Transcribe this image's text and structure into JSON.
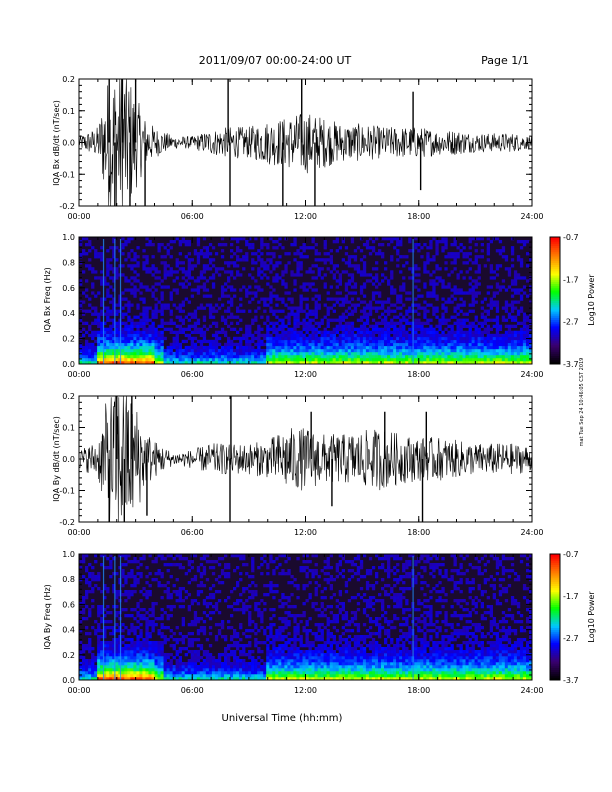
{
  "header": {
    "date_range": "2011/09/07  00:00-24:00 UT",
    "page": "Page 1/1"
  },
  "footer": {
    "side_note": "mat Tue Sep 24 10:46:05 CST 2019"
  },
  "chart_data": [
    {
      "type": "line",
      "ylabel": "IQA Bx dB/dt (nT/sec)",
      "xlabel": "",
      "xlim_hours": [
        0,
        24
      ],
      "ylim": [
        -0.2,
        0.2
      ],
      "x_ticks": [
        "00:00",
        "06:00",
        "12:00",
        "18:00",
        "24:00"
      ],
      "y_ticks": [
        "-0.2",
        "-0.1",
        "0.0",
        "0.1",
        "0.2"
      ],
      "envelope": {
        "hours": [
          0,
          1,
          1.5,
          2,
          2.5,
          3,
          3.5,
          4,
          5,
          6,
          7,
          8,
          9,
          10,
          11,
          12,
          13,
          14,
          15,
          16,
          17,
          18,
          19,
          20,
          21,
          22,
          23,
          24
        ],
        "amplitude": [
          0.02,
          0.05,
          0.2,
          0.25,
          0.25,
          0.15,
          0.08,
          0.05,
          0.02,
          0.02,
          0.04,
          0.05,
          0.05,
          0.07,
          0.08,
          0.1,
          0.08,
          0.06,
          0.06,
          0.05,
          0.05,
          0.05,
          0.04,
          0.04,
          0.03,
          0.03,
          0.03,
          0.02
        ]
      },
      "spikes": [
        {
          "hour": 1.6,
          "value": 0.22
        },
        {
          "hour": 1.9,
          "value": -0.22
        },
        {
          "hour": 2.3,
          "value": 0.22
        },
        {
          "hour": 2.7,
          "value": -0.2
        },
        {
          "hour": 3.5,
          "value": -0.2
        },
        {
          "hour": 3.0,
          "value": 0.2
        },
        {
          "hour": 7.9,
          "value": 0.22
        },
        {
          "hour": 8.0,
          "value": -0.2
        },
        {
          "hour": 10.8,
          "value": -0.2
        },
        {
          "hour": 11.8,
          "value": 0.2
        },
        {
          "hour": 12.5,
          "value": -0.2
        },
        {
          "hour": 17.7,
          "value": 0.16
        },
        {
          "hour": 18.1,
          "value": -0.15
        }
      ]
    },
    {
      "type": "heatmap",
      "ylabel": "IQA Bx Freq (Hz)",
      "xlabel": "",
      "xlim_hours": [
        0,
        24
      ],
      "ylim": [
        0,
        1.0
      ],
      "x_ticks": [
        "00:00",
        "06:00",
        "12:00",
        "18:00",
        "24:00"
      ],
      "y_ticks": [
        "0.0",
        "0.2",
        "0.4",
        "0.6",
        "0.8",
        "1.0"
      ],
      "colorbar": {
        "label": "Log10 Power",
        "ticks": [
          "-0.7",
          "-1.7",
          "-2.7",
          "-3.7"
        ],
        "range": [
          -3.7,
          -0.7
        ]
      },
      "vertical_streak_hours": [
        1.3,
        1.9,
        2.2,
        17.7
      ],
      "activity_band_hours": [
        [
          1.0,
          4.5
        ],
        [
          10.0,
          24.0
        ]
      ]
    },
    {
      "type": "line",
      "ylabel": "IQA By dB/dt (nT/sec)",
      "xlabel": "",
      "xlim_hours": [
        0,
        24
      ],
      "ylim": [
        -0.2,
        0.2
      ],
      "x_ticks": [
        "00:00",
        "06:00",
        "12:00",
        "18:00",
        "24:00"
      ],
      "y_ticks": [
        "-0.2",
        "-0.1",
        "0.0",
        "0.1",
        "0.2"
      ],
      "envelope": {
        "hours": [
          0,
          1,
          1.5,
          2,
          2.5,
          3,
          3.5,
          4,
          5,
          6,
          7,
          8,
          9,
          10,
          11,
          12,
          13,
          14,
          15,
          16,
          17,
          18,
          19,
          20,
          21,
          22,
          23,
          24
        ],
        "amplitude": [
          0.03,
          0.06,
          0.2,
          0.25,
          0.25,
          0.18,
          0.1,
          0.06,
          0.02,
          0.03,
          0.05,
          0.05,
          0.05,
          0.06,
          0.1,
          0.1,
          0.08,
          0.08,
          0.09,
          0.1,
          0.08,
          0.07,
          0.07,
          0.06,
          0.05,
          0.05,
          0.05,
          0.04
        ]
      },
      "spikes": [
        {
          "hour": 1.6,
          "value": -0.22
        },
        {
          "hour": 2.0,
          "value": 0.22
        },
        {
          "hour": 2.4,
          "value": -0.2
        },
        {
          "hour": 2.8,
          "value": 0.2
        },
        {
          "hour": 3.6,
          "value": -0.18
        },
        {
          "hour": 8.0,
          "value": -0.2
        },
        {
          "hour": 8.05,
          "value": 0.2
        },
        {
          "hour": 12.3,
          "value": 0.15
        },
        {
          "hour": 13.4,
          "value": -0.15
        },
        {
          "hour": 16.2,
          "value": 0.15
        },
        {
          "hour": 18.2,
          "value": -0.2
        },
        {
          "hour": 18.4,
          "value": 0.15
        }
      ]
    },
    {
      "type": "heatmap",
      "ylabel": "IQA By Freq (Hz)",
      "xlabel": "Universal Time (hh:mm)",
      "xlim_hours": [
        0,
        24
      ],
      "ylim": [
        0,
        1.0
      ],
      "x_ticks": [
        "00:00",
        "06:00",
        "12:00",
        "18:00",
        "24:00"
      ],
      "y_ticks": [
        "0.0",
        "0.2",
        "0.4",
        "0.6",
        "0.8",
        "1.0"
      ],
      "colorbar": {
        "label": "Log10 Power",
        "ticks": [
          "-0.7",
          "-1.7",
          "-2.7",
          "-3.7"
        ],
        "range": [
          -3.7,
          -0.7
        ]
      },
      "vertical_streak_hours": [
        1.3,
        1.9,
        2.2,
        17.7
      ],
      "activity_band_hours": [
        [
          1.0,
          4.5
        ],
        [
          10.0,
          24.0
        ]
      ]
    }
  ],
  "colors": {
    "trace": "#000000",
    "spectrogram_background": "#1a0a2e",
    "colorbar_stops": [
      "#000000",
      "#3a0070",
      "#0000ff",
      "#00c8ff",
      "#00ff00",
      "#ffff00",
      "#ff8000",
      "#ff0000"
    ]
  }
}
